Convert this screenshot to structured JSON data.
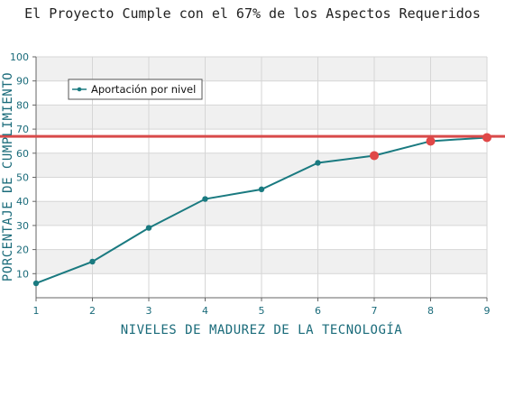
{
  "chart_data": {
    "type": "line",
    "title": "El Proyecto Cumple con el 67% de los Aspectos Requeridos",
    "xlabel": "NIVELES DE MADUREZ DE LA TECNOLOGÍA",
    "ylabel": "PORCENTAJE DE CUMPLIMIENTO",
    "x": [
      1,
      2,
      3,
      4,
      5,
      6,
      7,
      8,
      9
    ],
    "xlim": [
      1,
      9
    ],
    "ylim": [
      0,
      100
    ],
    "yticks": [
      10,
      20,
      30,
      40,
      50,
      60,
      70,
      80,
      90,
      100
    ],
    "series": [
      {
        "name": "Aportación por nivel",
        "values": [
          6,
          15,
          29,
          41,
          45,
          56,
          59,
          65,
          66.5
        ],
        "color": "#1a7a80"
      }
    ],
    "highlight_points": [
      7,
      8,
      9
    ],
    "highlight_color": "#e04848",
    "threshold": 67,
    "threshold_color": "#d84a4a",
    "grid": true,
    "band_color": "#f0f0f0",
    "legend_position": "top-left"
  }
}
